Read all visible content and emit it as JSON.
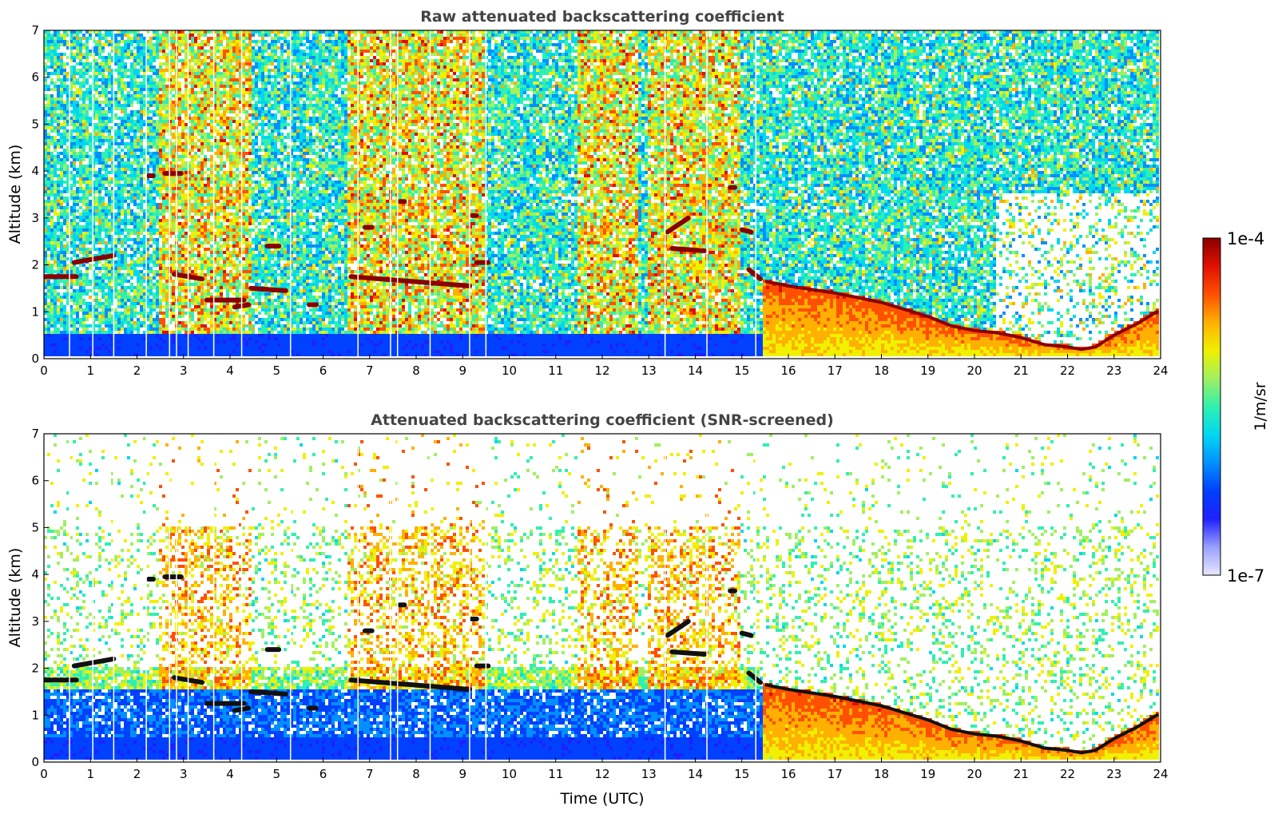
{
  "chart_data": [
    {
      "type": "heatmap",
      "title": "Raw attenuated backscattering coefficient",
      "xlabel": "",
      "ylabel": "Altitude (km)",
      "xlim": [
        0,
        24
      ],
      "ylim": [
        0,
        7
      ],
      "x_ticks": [
        "0",
        "1",
        "2",
        "3",
        "4",
        "5",
        "6",
        "7",
        "8",
        "9",
        "10",
        "11",
        "12",
        "13",
        "14",
        "15",
        "16",
        "17",
        "18",
        "19",
        "20",
        "21",
        "22",
        "23",
        "24"
      ],
      "y_ticks": [
        "0",
        "1",
        "2",
        "3",
        "4",
        "5",
        "6",
        "7"
      ],
      "background": "noisy",
      "cloud_layers": [
        {
          "t": [
            0.0,
            0.7
          ],
          "z": [
            1.75,
            1.75
          ]
        },
        {
          "t": [
            0.65,
            1.5
          ],
          "z": [
            2.05,
            2.2
          ]
        },
        {
          "t": [
            2.25,
            2.35
          ],
          "z": [
            3.9,
            3.9
          ]
        },
        {
          "t": [
            2.6,
            2.95
          ],
          "z": [
            3.95,
            3.95
          ]
        },
        {
          "t": [
            2.8,
            3.4
          ],
          "z": [
            1.8,
            1.7
          ]
        },
        {
          "t": [
            3.5,
            4.3
          ],
          "z": [
            1.25,
            1.25
          ]
        },
        {
          "t": [
            4.1,
            4.4
          ],
          "z": [
            1.1,
            1.15
          ]
        },
        {
          "t": [
            4.45,
            5.2
          ],
          "z": [
            1.5,
            1.45
          ]
        },
        {
          "t": [
            4.8,
            5.05
          ],
          "z": [
            2.4,
            2.4
          ]
        },
        {
          "t": [
            5.7,
            5.85
          ],
          "z": [
            1.15,
            1.15
          ]
        },
        {
          "t": [
            6.6,
            9.15
          ],
          "z": [
            1.75,
            1.55
          ]
        },
        {
          "t": [
            6.9,
            7.05
          ],
          "z": [
            2.8,
            2.8
          ]
        },
        {
          "t": [
            7.65,
            7.75
          ],
          "z": [
            3.35,
            3.35
          ]
        },
        {
          "t": [
            9.2,
            9.3
          ],
          "z": [
            3.05,
            3.05
          ]
        },
        {
          "t": [
            9.3,
            9.55
          ],
          "z": [
            2.05,
            2.05
          ]
        },
        {
          "t": [
            13.4,
            13.85
          ],
          "z": [
            2.7,
            3.0
          ]
        },
        {
          "t": [
            13.5,
            14.2
          ],
          "z": [
            2.35,
            2.3
          ]
        },
        {
          "t": [
            14.75,
            14.85
          ],
          "z": [
            3.65,
            3.65
          ]
        },
        {
          "t": [
            15.0,
            15.2
          ],
          "z": [
            2.75,
            2.7
          ]
        },
        {
          "t": [
            15.15,
            15.4
          ],
          "z": [
            1.9,
            1.7
          ]
        }
      ],
      "boundary_layer": {
        "t": [
          15.5,
          16,
          17,
          17.5,
          18,
          19,
          19.5,
          20,
          20.5,
          21,
          21.5,
          22,
          22.3,
          22.6,
          23,
          23.5,
          24
        ],
        "top": [
          1.65,
          1.55,
          1.4,
          1.3,
          1.2,
          0.9,
          0.7,
          0.6,
          0.55,
          0.45,
          0.3,
          0.25,
          0.2,
          0.25,
          0.5,
          0.75,
          1.05
        ]
      },
      "near_surface_layer": {
        "t": [
          0,
          15.5
        ],
        "z": [
          0,
          0.5
        ]
      }
    },
    {
      "type": "heatmap",
      "title": "Attenuated backscattering coefficient (SNR-screened)",
      "xlabel": "Time (UTC)",
      "ylabel": "Altitude (km)",
      "xlim": [
        0,
        24
      ],
      "ylim": [
        0,
        7
      ],
      "x_ticks": [
        "0",
        "1",
        "2",
        "3",
        "4",
        "5",
        "6",
        "7",
        "8",
        "9",
        "10",
        "11",
        "12",
        "13",
        "14",
        "15",
        "16",
        "17",
        "18",
        "19",
        "20",
        "21",
        "22",
        "23",
        "24"
      ],
      "y_ticks": [
        "0",
        "1",
        "2",
        "3",
        "4",
        "5",
        "6",
        "7"
      ],
      "background": "screened"
    }
  ],
  "colorbar": {
    "label": "1/m/sr",
    "max_label": "1e-4",
    "min_label": "1e-7",
    "colors": [
      "#e8e8ff",
      "#9aa0ff",
      "#2020ff",
      "#0040ff",
      "#0090ff",
      "#00d8f0",
      "#30f0b0",
      "#a0f060",
      "#f0f000",
      "#ffb000",
      "#ff5000",
      "#e01000",
      "#8a0000"
    ]
  }
}
